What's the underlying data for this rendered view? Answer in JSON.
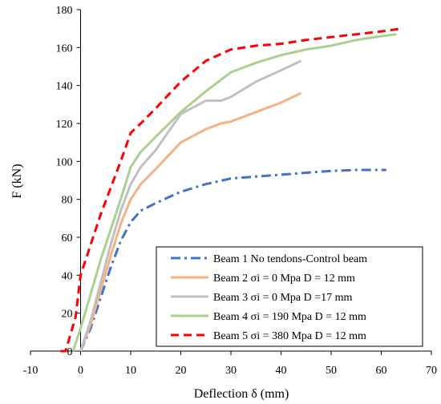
{
  "chart_data": {
    "type": "line",
    "title": "",
    "xlabel": "Deflection δ (mm)",
    "ylabel": "F (kN)",
    "xlim": [
      -10,
      70
    ],
    "ylim": [
      0,
      180
    ],
    "x_ticks": [
      -10,
      0,
      10,
      20,
      30,
      40,
      50,
      60,
      70
    ],
    "y_ticks": [
      0,
      20,
      40,
      60,
      80,
      100,
      120,
      140,
      160,
      180
    ],
    "grid": false,
    "legend_position": "bottom-right",
    "series": [
      {
        "name": "Beam 1 No tendons-Control beam",
        "color": "#4472c4",
        "dash": "dash-dot",
        "points": [
          [
            0,
            0
          ],
          [
            2,
            12
          ],
          [
            4,
            28
          ],
          [
            6,
            44
          ],
          [
            8,
            58
          ],
          [
            10,
            68
          ],
          [
            12,
            74
          ],
          [
            15,
            78
          ],
          [
            20,
            84
          ],
          [
            25,
            88
          ],
          [
            30,
            91
          ],
          [
            35,
            92
          ],
          [
            40,
            93
          ],
          [
            45,
            94
          ],
          [
            50,
            95
          ],
          [
            55,
            95.5
          ],
          [
            61,
            95.5
          ]
        ]
      },
      {
        "name": "Beam 2 σi = 0 Mpa D = 12 mm",
        "color": "#f4b183",
        "dash": "solid",
        "points": [
          [
            0,
            0
          ],
          [
            2,
            14
          ],
          [
            4,
            32
          ],
          [
            6,
            50
          ],
          [
            8,
            67
          ],
          [
            10,
            80
          ],
          [
            12,
            88
          ],
          [
            15,
            96
          ],
          [
            20,
            110
          ],
          [
            25,
            117
          ],
          [
            28,
            120
          ],
          [
            30,
            121
          ],
          [
            35,
            126
          ],
          [
            40,
            131
          ],
          [
            44,
            136
          ]
        ]
      },
      {
        "name": "Beam 3 σi = 0 Mpa D =17 mm",
        "color": "#c0c0c0",
        "dash": "solid",
        "points": [
          [
            0,
            0
          ],
          [
            2,
            16
          ],
          [
            4,
            36
          ],
          [
            6,
            56
          ],
          [
            8,
            74
          ],
          [
            10,
            88
          ],
          [
            12,
            97
          ],
          [
            15,
            106
          ],
          [
            20,
            125
          ],
          [
            25,
            132
          ],
          [
            28,
            132
          ],
          [
            30,
            134
          ],
          [
            35,
            142
          ],
          [
            40,
            148
          ],
          [
            44,
            153
          ]
        ]
      },
      {
        "name": "Beam 4 σi = 190 Mpa D = 12 mm",
        "color": "#a9d18e",
        "dash": "solid",
        "points": [
          [
            -1.5,
            0
          ],
          [
            0,
            12
          ],
          [
            2,
            30
          ],
          [
            4,
            48
          ],
          [
            6,
            64
          ],
          [
            8,
            80
          ],
          [
            10,
            97
          ],
          [
            12,
            105
          ],
          [
            15,
            113
          ],
          [
            20,
            126
          ],
          [
            25,
            137
          ],
          [
            30,
            147
          ],
          [
            35,
            152
          ],
          [
            40,
            156
          ],
          [
            45,
            159
          ],
          [
            50,
            161
          ],
          [
            55,
            164
          ],
          [
            60,
            166
          ],
          [
            63,
            167
          ]
        ]
      },
      {
        "name": "Beam 5 σi = 380 Mpa D = 12 mm",
        "color": "#ff0000",
        "dash": "dashed",
        "points": [
          [
            -4,
            0
          ],
          [
            -3,
            0
          ],
          [
            -1,
            18
          ],
          [
            0,
            40
          ],
          [
            2,
            56
          ],
          [
            4,
            72
          ],
          [
            6,
            86
          ],
          [
            8,
            100
          ],
          [
            10,
            115
          ],
          [
            12,
            120
          ],
          [
            15,
            128
          ],
          [
            20,
            142
          ],
          [
            25,
            153
          ],
          [
            30,
            159
          ],
          [
            35,
            161
          ],
          [
            40,
            162
          ],
          [
            45,
            164
          ],
          [
            50,
            165.5
          ],
          [
            55,
            167
          ],
          [
            60,
            168.5
          ],
          [
            64,
            170
          ]
        ]
      }
    ]
  }
}
